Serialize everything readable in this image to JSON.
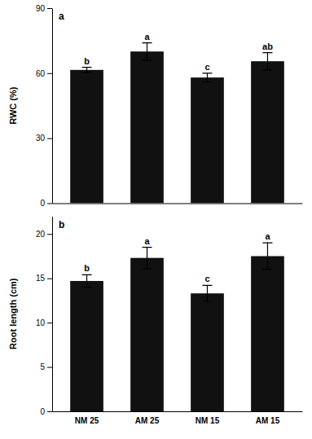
{
  "chart_data": [
    {
      "type": "bar",
      "title": "a",
      "categories": [
        "NM 25",
        "AM 25",
        "NM 15",
        "AM 15"
      ],
      "values": [
        61.5,
        70.0,
        58.0,
        65.5
      ],
      "errors": [
        1.2,
        4.0,
        2.0,
        4.0
      ],
      "annotations": [
        "b",
        "a",
        "c",
        "ab"
      ],
      "y_label": "RWC (%)",
      "color": "#111111",
      "ylim": [
        0,
        90
      ],
      "yticks": [
        0,
        30,
        60,
        90
      ],
      "tick_labels": "y"
    },
    {
      "type": "bar",
      "title": "b",
      "categories": [
        "NM 25",
        "AM 25",
        "NM 15",
        "AM 15"
      ],
      "values": [
        14.7,
        17.3,
        13.3,
        17.5
      ],
      "errors": [
        0.7,
        1.2,
        0.9,
        1.5
      ],
      "annotations": [
        "b",
        "a",
        "c",
        "a"
      ],
      "y_label": "Root length (cm)",
      "color": "#111111",
      "ylim": [
        0,
        22
      ],
      "yticks": [
        0,
        5,
        10,
        15,
        20
      ]
    }
  ]
}
